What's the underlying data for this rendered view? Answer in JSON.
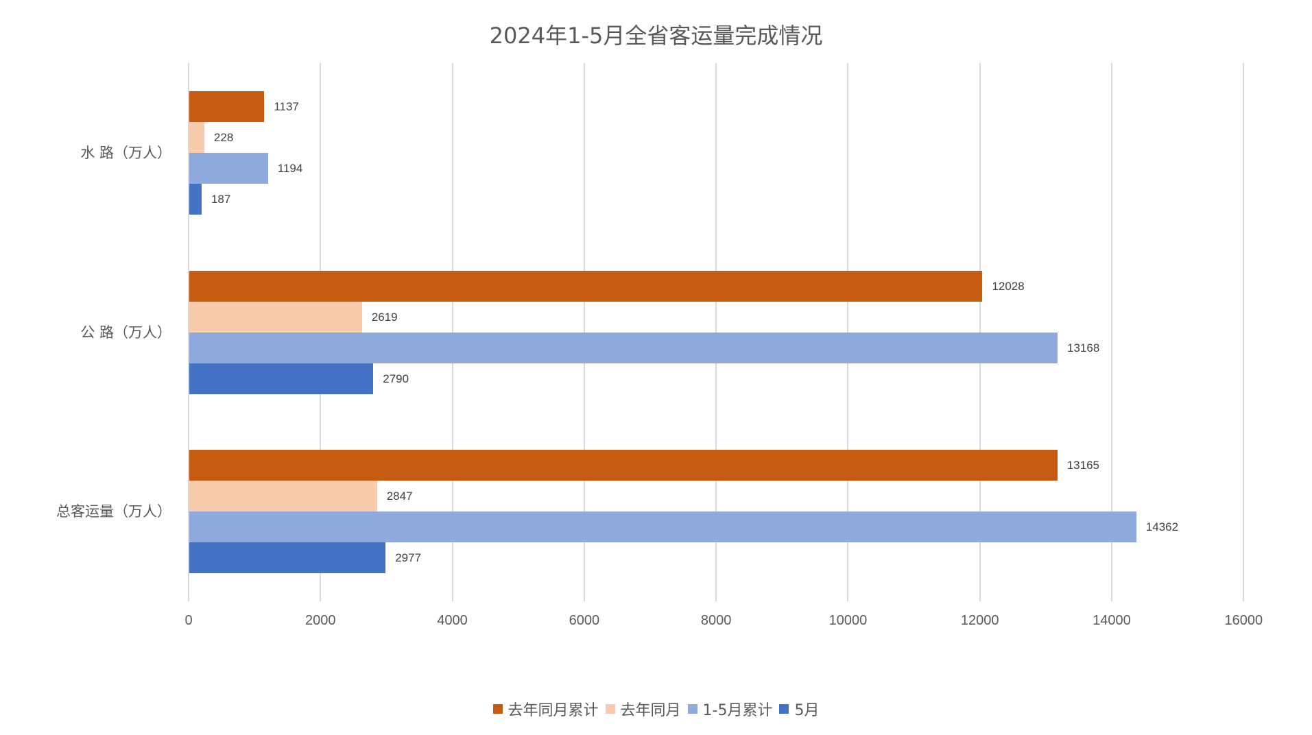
{
  "chart_data": {
    "type": "bar",
    "orientation": "horizontal",
    "title": "2024年1-5月全省客运量完成情况",
    "categories": [
      "水 路（万人）",
      "公 路（万人）",
      "总客运量（万人）"
    ],
    "series": [
      {
        "name": "去年同月累计",
        "color": "#C55A11",
        "values": [
          1137,
          12028,
          13165
        ]
      },
      {
        "name": "去年同月",
        "color": "#F8CBAD",
        "values": [
          228,
          2619,
          2847
        ]
      },
      {
        "name": "1-5月累计",
        "color": "#8FAADC",
        "values": [
          1194,
          13168,
          14362
        ]
      },
      {
        "name": "5月",
        "color": "#4472C4",
        "values": [
          187,
          2790,
          2977
        ]
      }
    ],
    "xlabel": "",
    "ylabel": "",
    "xlim": [
      0,
      16000
    ],
    "xticks": [
      "0",
      "2000",
      "4000",
      "6000",
      "8000",
      "10000",
      "12000",
      "14000",
      "16000"
    ],
    "grid": true,
    "legend_position": "bottom",
    "data_labels": true
  },
  "colors": {
    "text": "#595959",
    "gridline": "#D9D9D9",
    "label": "#404040"
  }
}
